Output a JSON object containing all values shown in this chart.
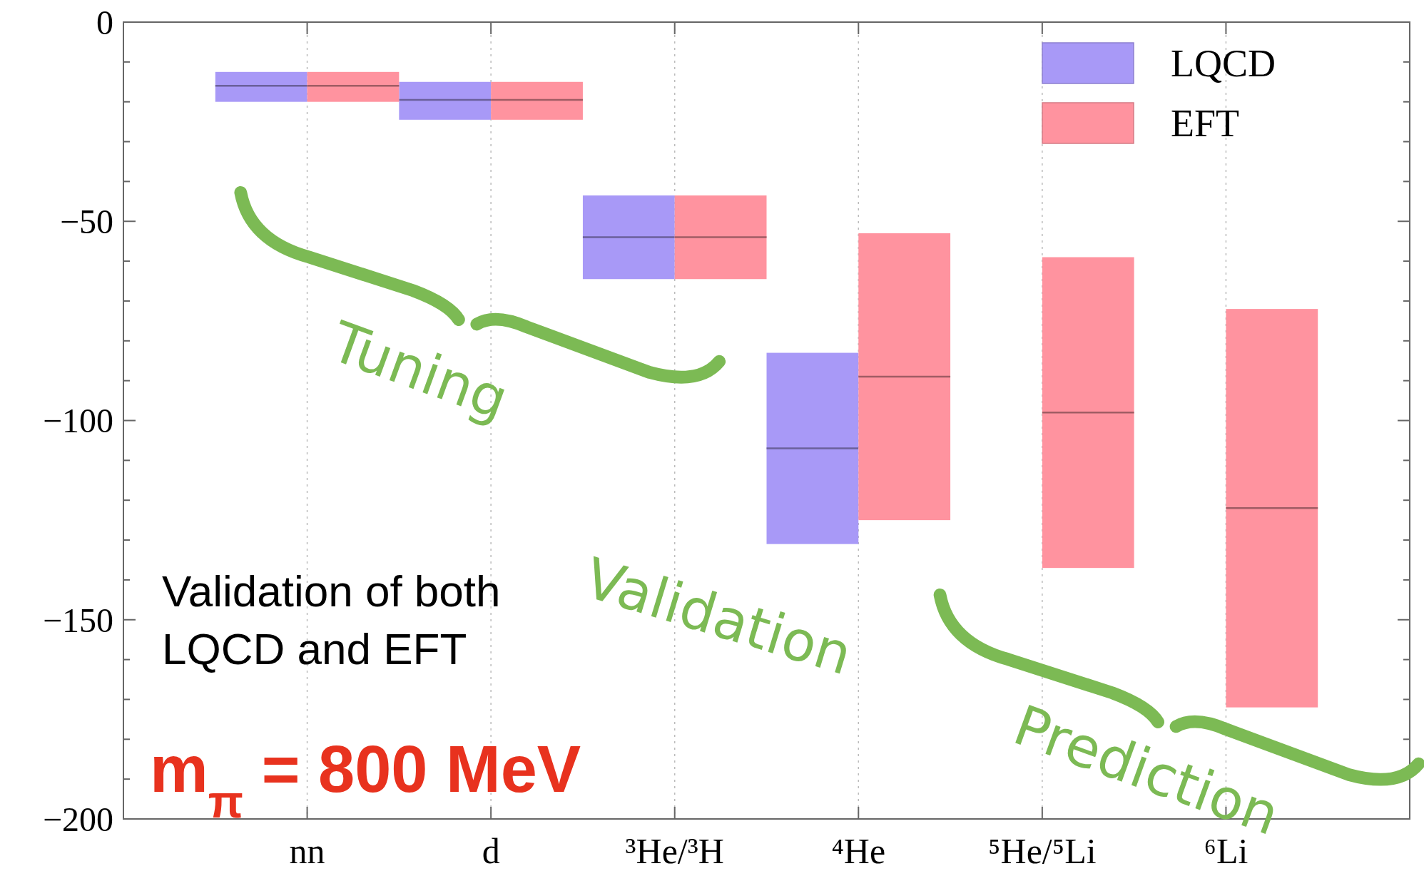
{
  "chart_data": {
    "type": "box",
    "categories": [
      "nn",
      "d",
      "³He/³H",
      "⁴He",
      "⁵He/⁵Li",
      "⁶Li"
    ],
    "ylim": [
      -200,
      0
    ],
    "yticks": [
      {
        "value": -200,
        "label": "−200"
      },
      {
        "value": -190,
        "label": null
      },
      {
        "value": -180,
        "label": null
      },
      {
        "value": -170,
        "label": null
      },
      {
        "value": -160,
        "label": null
      },
      {
        "value": -150,
        "label": "−150"
      },
      {
        "value": -140,
        "label": null
      },
      {
        "value": -130,
        "label": null
      },
      {
        "value": -120,
        "label": null
      },
      {
        "value": -110,
        "label": null
      },
      {
        "value": -100,
        "label": "−100"
      },
      {
        "value": -90,
        "label": null
      },
      {
        "value": -80,
        "label": null
      },
      {
        "value": -70,
        "label": null
      },
      {
        "value": -60,
        "label": null
      },
      {
        "value": -50,
        "label": "−50"
      },
      {
        "value": -40,
        "label": null
      },
      {
        "value": -30,
        "label": null
      },
      {
        "value": -20,
        "label": null
      },
      {
        "value": -10,
        "label": null
      },
      {
        "value": 0,
        "label": "0"
      }
    ],
    "grid": "x",
    "legend": "top right",
    "series": [
      {
        "name": "LQCD",
        "color": "#a899f7",
        "boxes": [
          {
            "low": -20,
            "q1": -20,
            "median": -16,
            "q3": -12.5,
            "high": -12.5
          },
          {
            "low": -24.5,
            "q1": -24.5,
            "median": -19.5,
            "q3": -15,
            "high": -15
          },
          {
            "low": -64.5,
            "q1": -64.5,
            "median": -54,
            "q3": -43.5,
            "high": -43.5
          },
          {
            "low": -131,
            "q1": -131,
            "median": -107,
            "q3": -83,
            "high": -83
          },
          null,
          null
        ]
      },
      {
        "name": "EFT",
        "color": "#ff939f",
        "boxes": [
          {
            "low": -20,
            "q1": -20,
            "median": -16,
            "q3": -12.5,
            "high": -12.5
          },
          {
            "low": -24.5,
            "q1": -24.5,
            "median": -19.5,
            "q3": -15,
            "high": -15
          },
          {
            "low": -64.5,
            "q1": -64.5,
            "median": -54,
            "q3": -43.5,
            "high": -43.5
          },
          {
            "low": -125,
            "q1": -125,
            "median": -89,
            "q3": -53,
            "high": -53
          },
          {
            "low": -137,
            "q1": -137,
            "median": -98,
            "q3": -59,
            "high": -59
          },
          {
            "low": -172,
            "q1": -172,
            "median": -122,
            "q3": -72,
            "high": -72
          }
        ]
      }
    ],
    "annotations": [
      "Tuning",
      "Validation",
      "Prediction",
      "Validation of both\nLQCD and EFT",
      "m$_{π}$ = 800 MeV"
    ]
  }
}
